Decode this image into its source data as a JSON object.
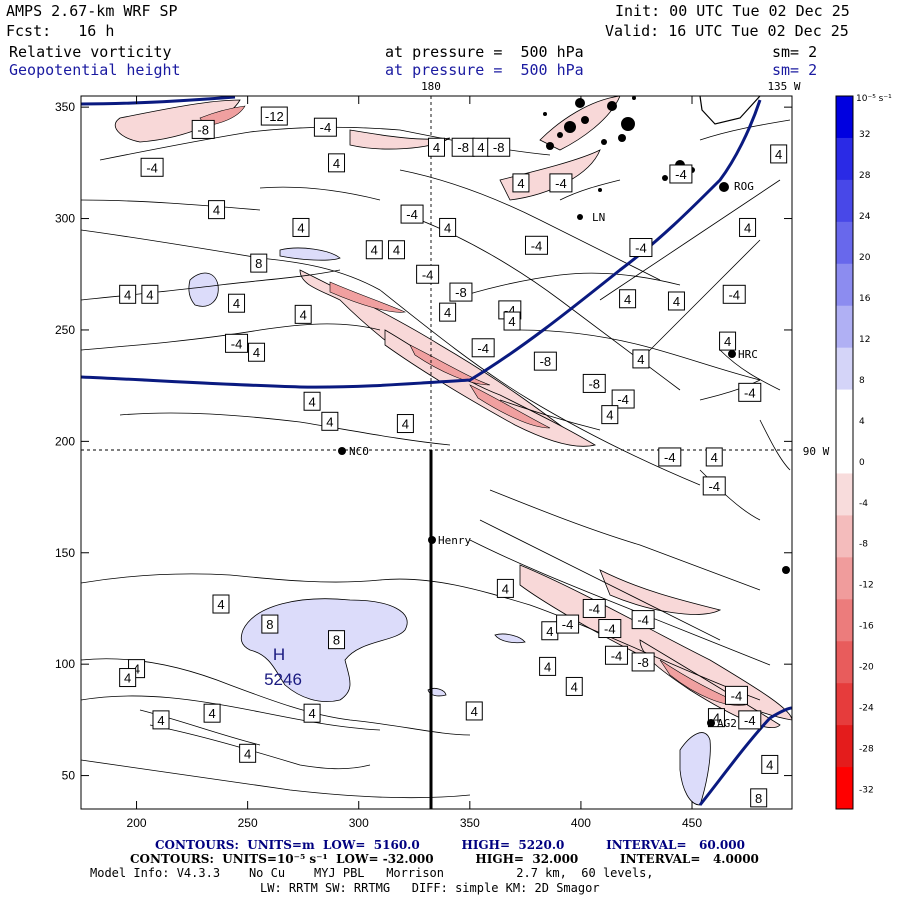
{
  "header": {
    "model": "AMPS 2.67-km WRF SP",
    "init": "Init: 00 UTC Tue 02 Dec 25",
    "fcst": "Fcst:   16 h",
    "valid": "Valid: 16 UTC Tue 02 Dec 25",
    "field1": "Relative vorticity",
    "field1_level": "at pressure =  500 hPa",
    "field1_sm": "sm= 2",
    "field2": "Geopotential height",
    "field2_level": "at pressure =  500 hPa",
    "field2_sm": "sm= 2"
  },
  "map_labels": {
    "lon_180": "180",
    "lon_135w": "135 W",
    "lon_90w": "90 W",
    "stations": [
      "NCO",
      "Henry",
      "ROG",
      "LN",
      "HRC",
      "AG2"
    ],
    "high_label": "H",
    "high_value": "5246"
  },
  "colorbar": {
    "unit_label": "10⁻⁵ s⁻¹",
    "ticks": [
      "32",
      "28",
      "24",
      "20",
      "16",
      "12",
      "8",
      "4",
      "0",
      "-4",
      "-8",
      "-12",
      "-16",
      "-20",
      "-24",
      "-28",
      "-32"
    ],
    "colors": [
      "#0000e0",
      "#2a2ae6",
      "#4848e8",
      "#6868ec",
      "#8c8cf0",
      "#b0b0f4",
      "#d4d4f8",
      "#ffffff",
      "#ffffff",
      "#f8dcdc",
      "#f4bcbc",
      "#f09c9c",
      "#ec7c7c",
      "#e85c5c",
      "#e63c3c",
      "#e41c1c",
      "#ff0000"
    ]
  },
  "chart_data": {
    "type": "heatmap",
    "title": "Relative vorticity / Geopotential height at 500 hPa",
    "x_ticks": [
      200,
      250,
      300,
      350,
      400,
      450
    ],
    "y_ticks": [
      50,
      100,
      150,
      200,
      250,
      300,
      350
    ],
    "xlim": [
      175,
      495
    ],
    "ylim": [
      35,
      355
    ],
    "vorticity_contour_labels": [
      {
        "x": 207,
        "y": 323,
        "t": "-4"
      },
      {
        "x": 230,
        "y": 340,
        "t": "-8"
      },
      {
        "x": 262,
        "y": 346,
        "t": "-12"
      },
      {
        "x": 285,
        "y": 341,
        "t": "-4"
      },
      {
        "x": 290,
        "y": 325,
        "t": "4"
      },
      {
        "x": 335,
        "y": 332,
        "t": "4"
      },
      {
        "x": 347,
        "y": 332,
        "t": "-8"
      },
      {
        "x": 355,
        "y": 332,
        "t": "4"
      },
      {
        "x": 363,
        "y": 332,
        "t": "-8"
      },
      {
        "x": 236,
        "y": 304,
        "t": "4"
      },
      {
        "x": 274,
        "y": 296,
        "t": "4"
      },
      {
        "x": 324,
        "y": 302,
        "t": "-4"
      },
      {
        "x": 340,
        "y": 296,
        "t": "4"
      },
      {
        "x": 307,
        "y": 286,
        "t": "4"
      },
      {
        "x": 317,
        "y": 286,
        "t": "4"
      },
      {
        "x": 255,
        "y": 280,
        "t": "8"
      },
      {
        "x": 331,
        "y": 275,
        "t": "-4"
      },
      {
        "x": 380,
        "y": 288,
        "t": "-4"
      },
      {
        "x": 391,
        "y": 316,
        "t": "-4"
      },
      {
        "x": 373,
        "y": 316,
        "t": "4"
      },
      {
        "x": 196,
        "y": 266,
        "t": "4"
      },
      {
        "x": 206,
        "y": 266,
        "t": "4"
      },
      {
        "x": 245,
        "y": 262,
        "t": "4"
      },
      {
        "x": 346,
        "y": 267,
        "t": "-8"
      },
      {
        "x": 368,
        "y": 259,
        "t": "-4"
      },
      {
        "x": 340,
        "y": 258,
        "t": "4"
      },
      {
        "x": 275,
        "y": 257,
        "t": "4"
      },
      {
        "x": 245,
        "y": 244,
        "t": "-4"
      },
      {
        "x": 254,
        "y": 240,
        "t": "4"
      },
      {
        "x": 356,
        "y": 242,
        "t": "-4"
      },
      {
        "x": 369,
        "y": 254,
        "t": "4"
      },
      {
        "x": 384,
        "y": 236,
        "t": "-8"
      },
      {
        "x": 406,
        "y": 226,
        "t": "-8"
      },
      {
        "x": 443,
        "y": 263,
        "t": "4"
      },
      {
        "x": 466,
        "y": 245,
        "t": "4"
      },
      {
        "x": 469,
        "y": 266,
        "t": "-4"
      },
      {
        "x": 421,
        "y": 264,
        "t": "4"
      },
      {
        "x": 427,
        "y": 237,
        "t": "4"
      },
      {
        "x": 419,
        "y": 219,
        "t": "-4"
      },
      {
        "x": 413,
        "y": 212,
        "t": "4"
      },
      {
        "x": 476,
        "y": 222,
        "t": "-4"
      },
      {
        "x": 279,
        "y": 218,
        "t": "4"
      },
      {
        "x": 287,
        "y": 209,
        "t": "4"
      },
      {
        "x": 321,
        "y": 208,
        "t": "4"
      },
      {
        "x": 440,
        "y": 193,
        "t": "-4"
      },
      {
        "x": 460,
        "y": 193,
        "t": "4"
      },
      {
        "x": 460,
        "y": 180,
        "t": "-4"
      },
      {
        "x": 427,
        "y": 287,
        "t": "-4"
      },
      {
        "x": 445,
        "y": 320,
        "t": "-4"
      },
      {
        "x": 475,
        "y": 296,
        "t": "4"
      },
      {
        "x": 489,
        "y": 329,
        "t": "4"
      },
      {
        "x": 366,
        "y": 134,
        "t": "4"
      },
      {
        "x": 238,
        "y": 127,
        "t": "4"
      },
      {
        "x": 260,
        "y": 118,
        "t": "8"
      },
      {
        "x": 290,
        "y": 111,
        "t": "8"
      },
      {
        "x": 406,
        "y": 125,
        "t": "-4"
      },
      {
        "x": 386,
        "y": 115,
        "t": "4"
      },
      {
        "x": 394,
        "y": 118,
        "t": "-4"
      },
      {
        "x": 413,
        "y": 116,
        "t": "-4"
      },
      {
        "x": 428,
        "y": 120,
        "t": "-4"
      },
      {
        "x": 416,
        "y": 104,
        "t": "-4"
      },
      {
        "x": 428,
        "y": 101,
        "t": "-8"
      },
      {
        "x": 385,
        "y": 99,
        "t": "4"
      },
      {
        "x": 397,
        "y": 90,
        "t": "4"
      },
      {
        "x": 200,
        "y": 98,
        "t": "4"
      },
      {
        "x": 196,
        "y": 94,
        "t": "4"
      },
      {
        "x": 211,
        "y": 75,
        "t": "4"
      },
      {
        "x": 234,
        "y": 78,
        "t": "4"
      },
      {
        "x": 279,
        "y": 78,
        "t": "4"
      },
      {
        "x": 352,
        "y": 79,
        "t": "4"
      },
      {
        "x": 250,
        "y": 60,
        "t": "4"
      },
      {
        "x": 470,
        "y": 86,
        "t": "-4"
      },
      {
        "x": 461,
        "y": 76,
        "t": "4"
      },
      {
        "x": 476,
        "y": 75,
        "t": "-4"
      },
      {
        "x": 485,
        "y": 55,
        "t": "4"
      },
      {
        "x": 480,
        "y": 40,
        "t": "8"
      }
    ]
  },
  "footer": {
    "line1": "CONTOURS:  UNITS=m  LOW=  5160.0          HIGH=  5220.0          INTERVAL=   60.000",
    "line2": "CONTOURS:  UNITS=10⁻⁵ s⁻¹  LOW= -32.000          HIGH=  32.000          INTERVAL=   4.0000",
    "line3": "Model Info: V4.3.3    No Cu    MYJ PBL   Morrison          2.7 km,  60 levels,",
    "line4": "LW: RRTM SW: RRTMG   DIFF: simple KM: 2D Smagor"
  }
}
